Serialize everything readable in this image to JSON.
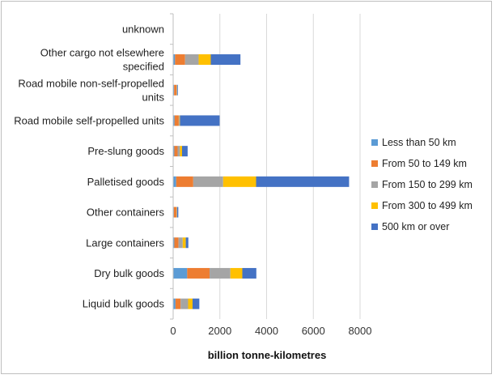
{
  "chart_data": {
    "type": "bar",
    "orientation": "horizontal",
    "stacked": true,
    "categories": [
      "unknown",
      "Other cargo not elsewhere specified",
      "Road mobile non-self-propelled units",
      "Road mobile self-propelled units",
      "Pre-slung goods",
      "Palletised goods",
      "Other containers",
      "Large containers",
      "Dry bulk goods",
      "Liquid bulk goods"
    ],
    "category_label_lines": [
      [
        "unknown"
      ],
      [
        "Other cargo not elsewhere",
        "specified"
      ],
      [
        "Road mobile non-self-propelled",
        "units"
      ],
      [
        "Road mobile self-propelled units"
      ],
      [
        "Pre-slung goods"
      ],
      [
        "Palletised goods"
      ],
      [
        "Other containers"
      ],
      [
        "Large containers"
      ],
      [
        "Dry bulk goods"
      ],
      [
        "Liquid bulk goods"
      ]
    ],
    "series": [
      {
        "name": "Less than 50 km",
        "color": "#5b9bd5",
        "values": [
          0,
          80,
          40,
          60,
          50,
          130,
          30,
          50,
          600,
          100
        ]
      },
      {
        "name": "From 50 to 149 km",
        "color": "#ed7d31",
        "values": [
          0,
          430,
          100,
          180,
          140,
          730,
          110,
          180,
          960,
          220
        ]
      },
      {
        "name": "From 150 to 299 km",
        "color": "#a5a5a5",
        "values": [
          0,
          580,
          20,
          30,
          100,
          1280,
          20,
          180,
          890,
          320
        ]
      },
      {
        "name": "From 300 to 499 km",
        "color": "#ffc000",
        "values": [
          0,
          520,
          10,
          20,
          90,
          1410,
          10,
          130,
          510,
          190
        ]
      },
      {
        "name": "500 km or over",
        "color": "#4472c4",
        "values": [
          0,
          1270,
          30,
          1700,
          240,
          3980,
          50,
          110,
          600,
          290
        ]
      }
    ],
    "xlabel": "billion tonne-kilometres",
    "xlim": [
      0,
      8000
    ],
    "xticks": [
      0,
      2000,
      4000,
      6000,
      8000
    ],
    "xtick_labels": [
      "0",
      "2000",
      "4000",
      "6000",
      "8000"
    ],
    "grid": "vertical",
    "legend_position": "right"
  }
}
